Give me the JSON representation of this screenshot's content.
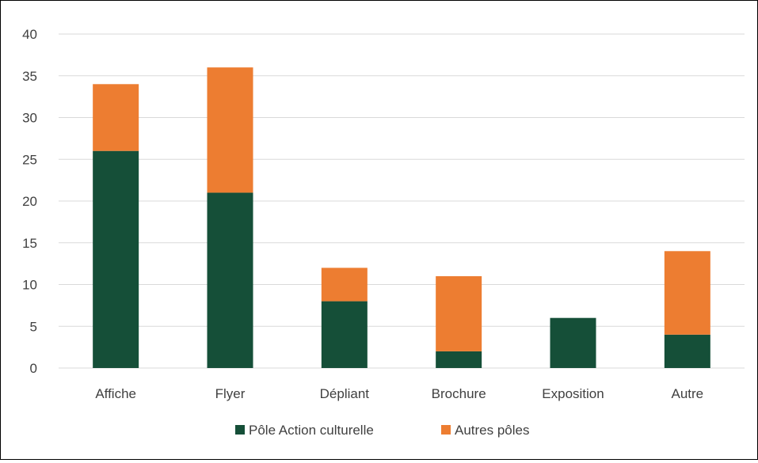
{
  "chart_data": {
    "type": "bar",
    "stacked": true,
    "categories": [
      "Affiche",
      "Flyer",
      "Dépliant",
      "Brochure",
      "Exposition",
      "Autre"
    ],
    "series": [
      {
        "name": "Pôle Action culturelle",
        "color": "#154F38",
        "values": [
          26,
          21,
          8,
          2,
          6,
          4
        ]
      },
      {
        "name": "Autres pôles",
        "color": "#ED7D31",
        "values": [
          8,
          15,
          4,
          9,
          0,
          10
        ]
      }
    ],
    "ylim": [
      0,
      40
    ],
    "yticks": [
      "0",
      "5",
      "10",
      "15",
      "20",
      "25",
      "30",
      "35",
      "40"
    ],
    "grid": true,
    "legend_position": "bottom",
    "gridline_color": "#D9D9D9",
    "text_color": "#404040"
  }
}
